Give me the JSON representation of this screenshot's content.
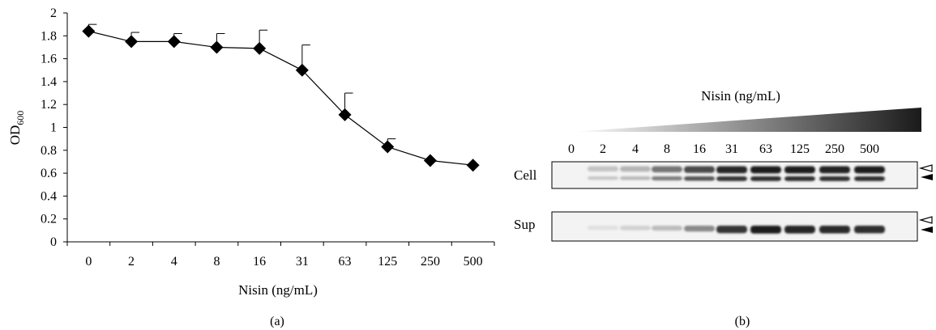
{
  "chart_data": [
    {
      "type": "line",
      "panel_label": "(a)",
      "xlabel": "Nisin (ng/mL)",
      "ylabel": "OD",
      "ylabel_sub": "600",
      "categories": [
        "0",
        "2",
        "4",
        "8",
        "16",
        "31",
        "63",
        "125",
        "250",
        "500"
      ],
      "values": [
        1.84,
        1.75,
        1.75,
        1.7,
        1.69,
        1.5,
        1.11,
        0.83,
        0.71,
        0.67
      ],
      "errors": [
        0.06,
        0.08,
        0.07,
        0.12,
        0.16,
        0.22,
        0.19,
        0.07,
        0.0,
        0.0
      ],
      "ylim": [
        0,
        2
      ],
      "yticks": [
        "0",
        "0.2",
        "0.4",
        "0.6",
        "0.8",
        "1",
        "1.2",
        "1.4",
        "1.6",
        "1.8",
        "2"
      ],
      "marker": "diamond",
      "line_color": "#000000",
      "grid": false
    },
    {
      "type": "heatmap",
      "panel_label": "(b)",
      "title": "Nisin (ng/mL)",
      "categories": [
        "0",
        "2",
        "4",
        "8",
        "16",
        "31",
        "63",
        "125",
        "250",
        "500"
      ],
      "rows": [
        "Cell",
        "Sup"
      ],
      "band_intensity": {
        "Cell": [
          0.0,
          0.18,
          0.25,
          0.55,
          0.75,
          0.92,
          0.95,
          0.95,
          0.93,
          0.95
        ],
        "Sup": [
          0.0,
          0.05,
          0.12,
          0.22,
          0.45,
          0.85,
          0.95,
          0.92,
          0.9,
          0.88
        ]
      },
      "arrows": [
        "open",
        "filled"
      ]
    }
  ]
}
